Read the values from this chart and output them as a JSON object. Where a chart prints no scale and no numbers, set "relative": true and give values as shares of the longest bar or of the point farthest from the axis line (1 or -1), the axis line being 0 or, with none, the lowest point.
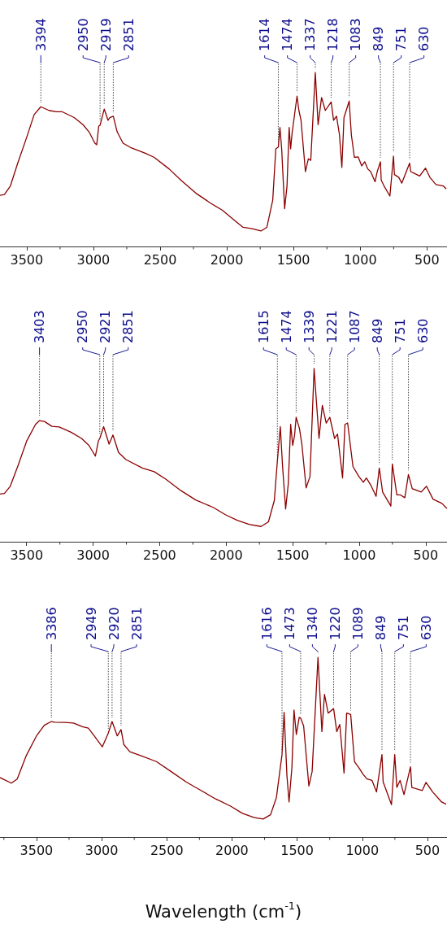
{
  "chart_data": [
    {
      "type": "line",
      "relative": true,
      "xlim": [
        3700,
        350
      ],
      "xticks": [
        3500,
        {
          "value": 3250,
          "label": null
        },
        3000,
        {
          "value": 2750,
          "label": null
        },
        2500,
        {
          "value": 2250,
          "label": null
        },
        2000,
        {
          "value": 1750,
          "label": null
        },
        1500,
        {
          "value": 1250,
          "label": null
        },
        1000,
        {
          "value": 750,
          "label": null
        },
        500
      ],
      "series": [
        {
          "color": "#8b0000",
          "x": [
            3700,
            3667,
            3622,
            3567,
            3500,
            3444,
            3394,
            3333,
            3278,
            3233,
            3144,
            3078,
            3033,
            2989,
            2975,
            2960,
            2950,
            2919,
            2890,
            2877,
            2851,
            2822,
            2778,
            2722,
            2611,
            2544,
            2433,
            2344,
            2233,
            2122,
            2033,
            1944,
            1878,
            1811,
            1744,
            1700,
            1656,
            1633,
            1614,
            1602,
            1589,
            1567,
            1549,
            1533,
            1522,
            1511,
            1474,
            1460,
            1444,
            1411,
            1389,
            1371,
            1337,
            1316,
            1290,
            1262,
            1218,
            1200,
            1178,
            1156,
            1138,
            1122,
            1083,
            1067,
            1044,
            1016,
            989,
            967,
            944,
            922,
            889,
            873,
            849,
            843,
            822,
            778,
            751,
            744,
            711,
            689,
            630,
            622,
            555,
            511,
            478,
            433,
            378,
            356
          ],
          "values": [
            0.294,
            0.299,
            0.348,
            0.479,
            0.627,
            0.758,
            0.803,
            0.782,
            0.774,
            0.774,
            0.741,
            0.7,
            0.659,
            0.594,
            0.585,
            0.692,
            0.697,
            0.79,
            0.725,
            0.741,
            0.749,
            0.659,
            0.594,
            0.569,
            0.536,
            0.512,
            0.446,
            0.381,
            0.307,
            0.249,
            0.208,
            0.151,
            0.11,
            0.102,
            0.089,
            0.11,
            0.266,
            0.561,
            0.572,
            0.684,
            0.561,
            0.217,
            0.348,
            0.684,
            0.561,
            0.651,
            0.864,
            0.782,
            0.725,
            0.43,
            0.504,
            0.495,
            1,
            0.7,
            0.856,
            0.782,
            0.831,
            0.725,
            0.749,
            0.643,
            0.454,
            0.741,
            0.836,
            0.643,
            0.512,
            0.515,
            0.463,
            0.487,
            0.446,
            0.43,
            0.372,
            0.43,
            0.487,
            0.381,
            0.348,
            0.29,
            0.52,
            0.413,
            0.397,
            0.364,
            0.479,
            0.43,
            0.405,
            0.45,
            0.397,
            0.356,
            0.348,
            0.331
          ]
        }
      ],
      "annotations": [
        {
          "text": "3394",
          "x": 3394,
          "y": 0.803
        },
        {
          "text": "2950",
          "x": 2950,
          "y": 0.697
        },
        {
          "text": "2919",
          "x": 2919,
          "y": 0.79
        },
        {
          "text": "2851",
          "x": 2851,
          "y": 0.749
        },
        {
          "text": "1614",
          "x": 1614,
          "y": 0.572
        },
        {
          "text": "1474",
          "x": 1474,
          "y": 0.864
        },
        {
          "text": "1337",
          "x": 1337,
          "y": 1
        },
        {
          "text": "1218",
          "x": 1218,
          "y": 0.831
        },
        {
          "text": "1083",
          "x": 1083,
          "y": 0.836
        },
        {
          "text": "849",
          "x": 849,
          "y": 0.487
        },
        {
          "text": "751",
          "x": 751,
          "y": 0.52
        },
        {
          "text": "630",
          "x": 630,
          "y": 0.479
        }
      ]
    },
    {
      "type": "line",
      "relative": true,
      "xlim": [
        3700,
        340
      ],
      "xticks": [
        3500,
        {
          "value": 3250,
          "label": null
        },
        3000,
        {
          "value": 2750,
          "label": null
        },
        2500,
        {
          "value": 2250,
          "label": null
        },
        2000,
        {
          "value": 1750,
          "label": null
        },
        1500,
        {
          "value": 1250,
          "label": null
        },
        1000,
        {
          "value": 750,
          "label": null
        },
        500
      ],
      "series": [
        {
          "color": "#8b0000",
          "x": [
            3700,
            3667,
            3623,
            3567,
            3500,
            3433,
            3403,
            3366,
            3310,
            3255,
            3166,
            3087,
            3032,
            2983,
            2960,
            2950,
            2921,
            2880,
            2851,
            2809,
            2753,
            2630,
            2541,
            2452,
            2340,
            2229,
            2095,
            2006,
            1917,
            1828,
            1738,
            1682,
            1638,
            1615,
            1593,
            1576,
            1553,
            1533,
            1515,
            1500,
            1486,
            1474,
            1449,
            1431,
            1399,
            1370,
            1339,
            1302,
            1277,
            1248,
            1221,
            1185,
            1163,
            1125,
            1107,
            1087,
            1047,
            1002,
            969,
            946,
            913,
            873,
            849,
            824,
            762,
            751,
            717,
            690,
            657,
            630,
            601,
            534,
            494,
            445,
            378,
            341
          ],
          "values": [
            0.275,
            0.279,
            0.32,
            0.434,
            0.58,
            0.677,
            0.699,
            0.694,
            0.666,
            0.662,
            0.632,
            0.596,
            0.556,
            0.494,
            0.583,
            0.596,
            0.664,
            0.563,
            0.616,
            0.515,
            0.474,
            0.425,
            0.404,
            0.36,
            0.295,
            0.241,
            0.197,
            0.156,
            0.124,
            0.1,
            0.088,
            0.115,
            0.238,
            0.466,
            0.664,
            0.434,
            0.189,
            0.335,
            0.677,
            0.556,
            0.612,
            0.718,
            0.653,
            0.563,
            0.311,
            0.376,
            1,
            0.596,
            0.787,
            0.685,
            0.718,
            0.596,
            0.621,
            0.368,
            0.677,
            0.685,
            0.434,
            0.376,
            0.343,
            0.368,
            0.327,
            0.262,
            0.425,
            0.287,
            0.206,
            0.449,
            0.27,
            0.27,
            0.254,
            0.388,
            0.306,
            0.287,
            0.32,
            0.246,
            0.221,
            0.192
          ]
        }
      ],
      "annotations": [
        {
          "text": "3403",
          "x": 3403,
          "y": 0.699
        },
        {
          "text": "2950",
          "x": 2950,
          "y": 0.596
        },
        {
          "text": "2921",
          "x": 2921,
          "y": 0.664
        },
        {
          "text": "2851",
          "x": 2851,
          "y": 0.616
        },
        {
          "text": "1615",
          "x": 1615,
          "y": 0.466
        },
        {
          "text": "1474",
          "x": 1474,
          "y": 0.718
        },
        {
          "text": "1339",
          "x": 1339,
          "y": 1
        },
        {
          "text": "1221",
          "x": 1221,
          "y": 0.718
        },
        {
          "text": "1087",
          "x": 1087,
          "y": 0.685
        },
        {
          "text": "849",
          "x": 849,
          "y": 0.425
        },
        {
          "text": "751",
          "x": 751,
          "y": 0.449
        },
        {
          "text": "630",
          "x": 630,
          "y": 0.388
        }
      ]
    },
    {
      "type": "line",
      "relative": true,
      "xlim": [
        3780,
        350
      ],
      "xlabel": "Wavelength (cm$^{-1}$)",
      "xticks": [
        {
          "value": 3750,
          "label": null
        },
        3500,
        {
          "value": 3250,
          "label": null
        },
        3000,
        {
          "value": 2750,
          "label": null
        },
        2500,
        {
          "value": 2250,
          "label": null
        },
        2000,
        {
          "value": 1750,
          "label": null
        },
        1500,
        {
          "value": 1250,
          "label": null
        },
        1000,
        {
          "value": 750,
          "label": null
        },
        500
      ],
      "series": [
        {
          "color": "#8b0000",
          "x": [
            3780,
            3693,
            3648,
            3580,
            3500,
            3440,
            3386,
            3360,
            3284,
            3216,
            3148,
            3102,
            3057,
            2995,
            2949,
            2920,
            2880,
            2851,
            2830,
            2784,
            2693,
            2580,
            2466,
            2352,
            2238,
            2125,
            2011,
            1920,
            1829,
            1761,
            1704,
            1659,
            1616,
            1600,
            1578,
            1562,
            1540,
            1524,
            1506,
            1484,
            1473,
            1450,
            1410,
            1385,
            1340,
            1310,
            1290,
            1262,
            1220,
            1196,
            1173,
            1140,
            1120,
            1089,
            1060,
            1027,
            993,
            964,
            925,
            891,
            849,
            840,
            776,
            751,
            735,
            710,
            680,
            630,
            620,
            540,
            511,
            460,
            391,
            357
          ],
          "values": [
            0.331,
            0.3,
            0.323,
            0.451,
            0.563,
            0.622,
            0.643,
            0.639,
            0.638,
            0.635,
            0.614,
            0.606,
            0.563,
            0.502,
            0.579,
            0.643,
            0.563,
            0.598,
            0.515,
            0.475,
            0.451,
            0.42,
            0.364,
            0.307,
            0.259,
            0.212,
            0.172,
            0.132,
            0.108,
            0.1,
            0.124,
            0.22,
            0.459,
            0.694,
            0.339,
            0.195,
            0.387,
            0.707,
            0.571,
            0.666,
            0.662,
            0.618,
            0.284,
            0.364,
            1,
            0.587,
            0.794,
            0.69,
            0.715,
            0.587,
            0.627,
            0.356,
            0.69,
            0.682,
            0.42,
            0.387,
            0.348,
            0.323,
            0.315,
            0.251,
            0.459,
            0.307,
            0.18,
            0.459,
            0.276,
            0.315,
            0.236,
            0.391,
            0.276,
            0.259,
            0.304,
            0.251,
            0.195,
            0.183
          ]
        }
      ],
      "annotations": [
        {
          "text": "3386",
          "x": 3386,
          "y": 0.643
        },
        {
          "text": "2949",
          "x": 2949,
          "y": 0.579
        },
        {
          "text": "2920",
          "x": 2920,
          "y": 0.643
        },
        {
          "text": "2851",
          "x": 2851,
          "y": 0.598
        },
        {
          "text": "1616",
          "x": 1616,
          "y": 0.459
        },
        {
          "text": "1473",
          "x": 1473,
          "y": 0.662
        },
        {
          "text": "1340",
          "x": 1340,
          "y": 1
        },
        {
          "text": "1220",
          "x": 1220,
          "y": 0.715
        },
        {
          "text": "1089",
          "x": 1089,
          "y": 0.682
        },
        {
          "text": "849",
          "x": 849,
          "y": 0.459
        },
        {
          "text": "751",
          "x": 751,
          "y": 0.459
        },
        {
          "text": "630",
          "x": 630,
          "y": 0.391
        }
      ]
    }
  ]
}
